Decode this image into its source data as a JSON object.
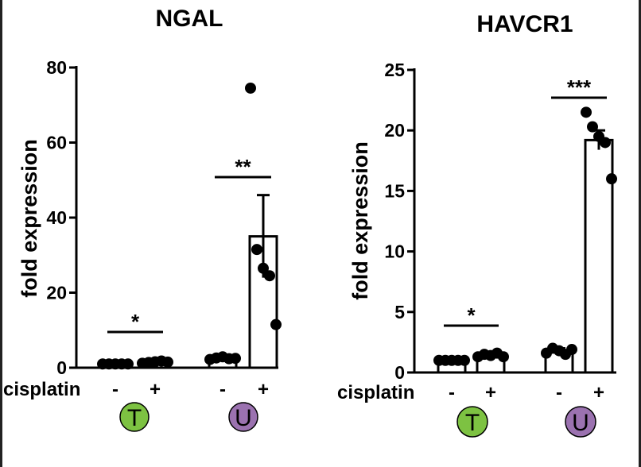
{
  "chart_data": [
    {
      "type": "bar",
      "title": "NGAL",
      "ylabel": "fold expression",
      "ylim": [
        0,
        80
      ],
      "yticks": [
        0,
        20,
        40,
        60,
        80
      ],
      "row_label": "cisplatin",
      "groups": [
        {
          "letter": "T",
          "color": "#7dc242",
          "bars": [
            {
              "label": "-",
              "mean": 1.0,
              "sem": 0,
              "points": [
                1.0,
                1.0,
                1.0,
                1.0,
                1.0
              ]
            },
            {
              "label": "+",
              "mean": 1.5,
              "sem": 0.3,
              "points": [
                1.2,
                1.4,
                1.6,
                1.8,
                1.5
              ]
            }
          ],
          "significance": "*"
        },
        {
          "letter": "U",
          "color": "#9b72b0",
          "bars": [
            {
              "label": "-",
              "mean": 2.5,
              "sem": 0.3,
              "points": [
                2.2,
                2.6,
                2.9,
                2.4,
                2.5
              ]
            },
            {
              "label": "+",
              "mean": 35,
              "sem": 11,
              "points": [
                74.5,
                31.5,
                26.5,
                24.5,
                11.5
              ]
            }
          ],
          "significance": "**"
        }
      ]
    },
    {
      "type": "bar",
      "title": "HAVCR1",
      "ylabel": "fold expression",
      "ylim": [
        0,
        25
      ],
      "yticks": [
        0,
        5,
        10,
        15,
        20,
        25
      ],
      "row_label": "cisplatin",
      "groups": [
        {
          "letter": "T",
          "color": "#7dc242",
          "bars": [
            {
              "label": "-",
              "mean": 1.0,
              "sem": 0,
              "points": [
                1.0,
                1.0,
                1.0,
                1.0,
                1.0
              ]
            },
            {
              "label": "+",
              "mean": 1.4,
              "sem": 0.1,
              "points": [
                1.3,
                1.5,
                1.4,
                1.6,
                1.3
              ]
            }
          ],
          "significance": "*"
        },
        {
          "letter": "U",
          "color": "#9b72b0",
          "bars": [
            {
              "label": "-",
              "mean": 1.8,
              "sem": 0.2,
              "points": [
                1.6,
                2.0,
                1.8,
                1.5,
                1.9
              ]
            },
            {
              "label": "+",
              "mean": 19.2,
              "sem": 0.8,
              "points": [
                21.5,
                20.3,
                19.5,
                19.0,
                16.0
              ]
            }
          ],
          "significance": "***"
        }
      ]
    }
  ]
}
